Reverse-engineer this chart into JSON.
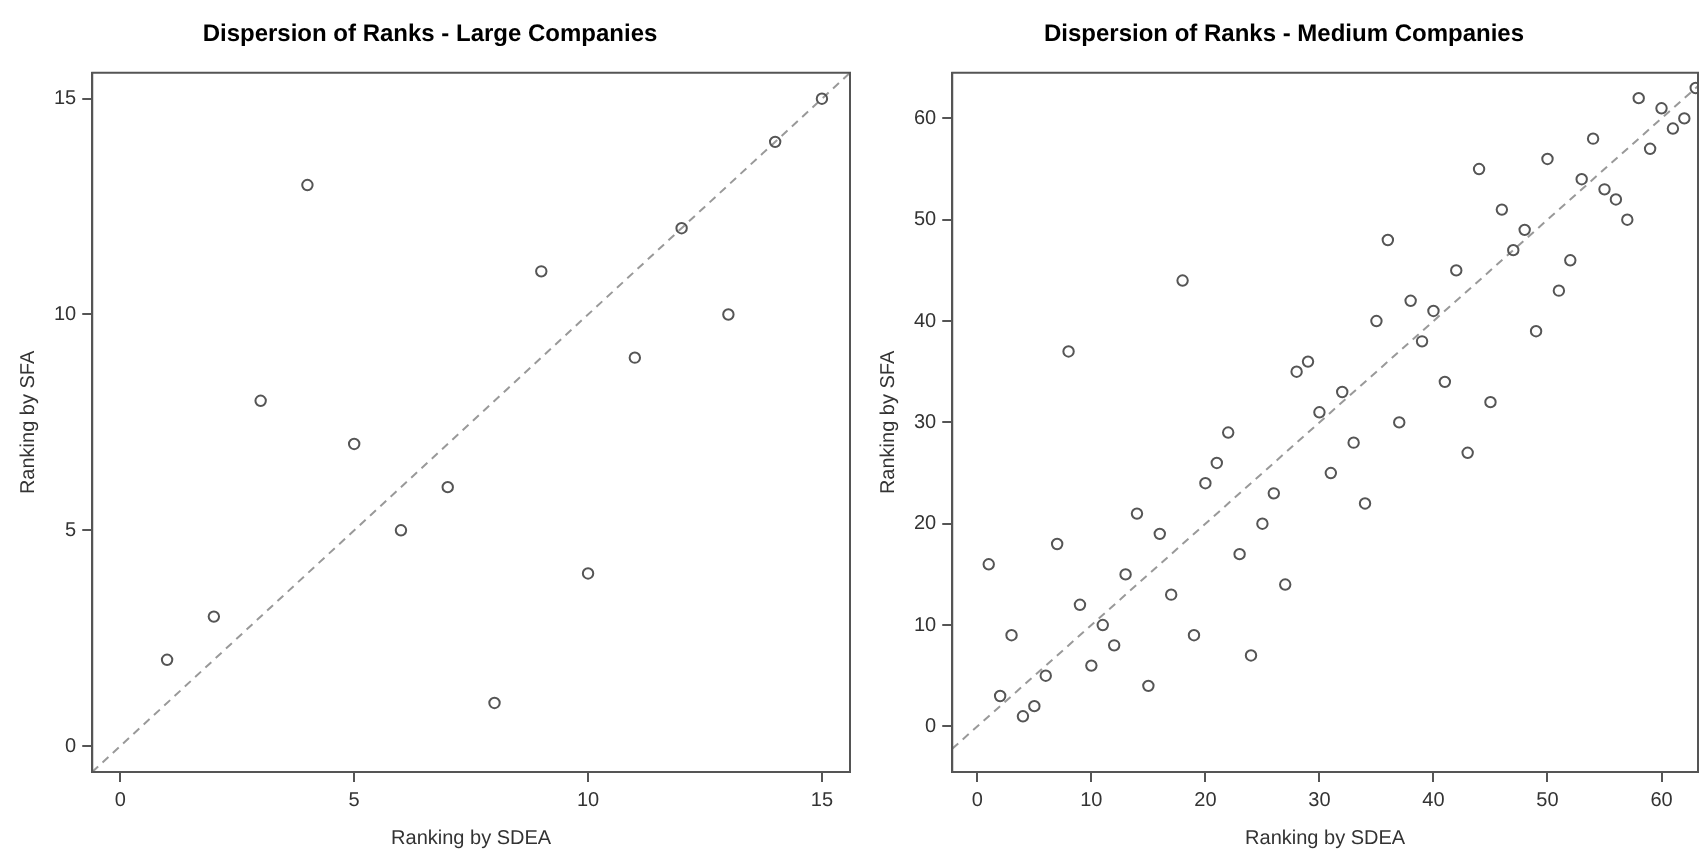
{
  "chart_data": [
    {
      "type": "scatter",
      "title": "Dispersion of Ranks - Large Companies",
      "xlabel": "Ranking by SDEA",
      "ylabel": "Ranking by SFA",
      "xlim": [
        -0.6,
        15.6
      ],
      "ylim": [
        -0.6,
        15.6
      ],
      "xticks": [
        0,
        5,
        10,
        15
      ],
      "yticks": [
        0,
        5,
        10,
        15
      ],
      "grid": false,
      "series": [
        {
          "color": "#555555",
          "marker": "circle",
          "x": [
            1,
            2,
            3,
            4,
            5,
            6,
            7,
            8,
            9,
            10,
            11,
            12,
            13,
            14,
            15
          ],
          "values": [
            2,
            3,
            8,
            13,
            7,
            5,
            6,
            1,
            11,
            4,
            9,
            12,
            10,
            14,
            15
          ]
        },
        {
          "type": "line",
          "marker": "none",
          "line_style": "dashed",
          "color": "#999999",
          "x": [
            -0.6,
            15.6
          ],
          "values": [
            -0.6,
            15.6
          ]
        }
      ]
    },
    {
      "type": "scatter",
      "title": "Dispersion of Ranks - Medium Companies",
      "xlabel": "Ranking by SDEA",
      "ylabel": "Ranking by SFA",
      "xlim": [
        -2.2,
        63.2
      ],
      "ylim": [
        -4.5,
        64.5
      ],
      "xticks": [
        0,
        10,
        20,
        30,
        40,
        50,
        60
      ],
      "yticks": [
        0,
        10,
        20,
        30,
        40,
        50,
        60
      ],
      "grid": false,
      "series": [
        {
          "color": "#555555",
          "marker": "circle",
          "x": [
            1,
            2,
            3,
            4,
            5,
            6,
            7,
            8,
            9,
            10,
            11,
            12,
            13,
            14,
            15,
            16,
            17,
            18,
            19,
            20,
            21,
            22,
            23,
            24,
            25,
            26,
            27,
            28,
            29,
            30,
            31,
            32,
            33,
            34,
            35,
            36,
            37,
            38,
            39,
            40,
            41,
            42,
            43,
            44,
            45,
            46,
            47,
            48,
            49,
            50,
            51,
            52,
            53,
            54,
            55,
            56,
            57,
            58,
            59,
            60,
            61,
            62,
            63
          ],
          "values": [
            16,
            3,
            9,
            1,
            2,
            5,
            18,
            37,
            12,
            6,
            10,
            8,
            15,
            21,
            4,
            19,
            13,
            44,
            9,
            24,
            26,
            29,
            17,
            7,
            20,
            23,
            14,
            35,
            36,
            31,
            25,
            33,
            28,
            22,
            40,
            48,
            30,
            42,
            38,
            41,
            34,
            45,
            27,
            55,
            32,
            51,
            47,
            49,
            39,
            56,
            43,
            46,
            54,
            58,
            53,
            52,
            50,
            62,
            57,
            61,
            59,
            60,
            63
          ]
        },
        {
          "type": "line",
          "marker": "none",
          "line_style": "dashed",
          "color": "#999999",
          "x": [
            -2.2,
            63.2
          ],
          "values": [
            -2.2,
            63.2
          ]
        }
      ]
    }
  ]
}
